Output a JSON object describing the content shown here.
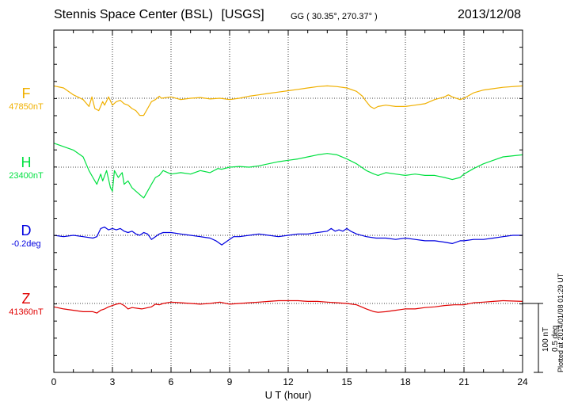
{
  "header": {
    "station": "Stennis Space Center (BSL)",
    "agency": "[USGS]",
    "coords": "GG ( 30.35°, 270.37° )",
    "date": "2013/12/08"
  },
  "plotted_note": "Plotted at 2014/01/08 01:29 UT",
  "scale": {
    "nt": "100 nT",
    "deg": "0.5 deg"
  },
  "chart_data": {
    "type": "line",
    "xlabel": "U T (hour)",
    "xlim": [
      0,
      24
    ],
    "xticks": [
      "0",
      "3",
      "6",
      "9",
      "12",
      "15",
      "18",
      "21",
      "24"
    ],
    "grid": true,
    "series": [
      {
        "name": "F",
        "baseline_label": "47850nT",
        "color": "#f0b000",
        "offset_scale": "nT",
        "points": [
          [
            0,
            18
          ],
          [
            0.5,
            15
          ],
          [
            1,
            5
          ],
          [
            1.5,
            -2
          ],
          [
            1.8,
            -12
          ],
          [
            1.95,
            2
          ],
          [
            2.1,
            -15
          ],
          [
            2.3,
            -18
          ],
          [
            2.5,
            -5
          ],
          [
            2.6,
            -10
          ],
          [
            2.8,
            2
          ],
          [
            3,
            -10
          ],
          [
            3.2,
            -5
          ],
          [
            3.4,
            -3
          ],
          [
            3.6,
            -8
          ],
          [
            3.8,
            -10
          ],
          [
            4,
            -15
          ],
          [
            4.2,
            -18
          ],
          [
            4.4,
            -25
          ],
          [
            4.6,
            -25
          ],
          [
            4.8,
            -15
          ],
          [
            5,
            -5
          ],
          [
            5.2,
            -2
          ],
          [
            5.4,
            3
          ],
          [
            5.5,
            0
          ],
          [
            6,
            2
          ],
          [
            6.5,
            -2
          ],
          [
            7,
            0
          ],
          [
            7.5,
            1
          ],
          [
            8,
            -1
          ],
          [
            8.5,
            0
          ],
          [
            9,
            -2
          ],
          [
            9.5,
            0
          ],
          [
            10,
            3
          ],
          [
            10.5,
            5
          ],
          [
            11,
            7
          ],
          [
            11.5,
            9
          ],
          [
            12,
            11
          ],
          [
            12.5,
            13
          ],
          [
            13,
            15
          ],
          [
            13.5,
            17
          ],
          [
            14,
            18
          ],
          [
            14.5,
            17
          ],
          [
            15,
            15
          ],
          [
            15.5,
            10
          ],
          [
            15.8,
            3
          ],
          [
            16,
            -5
          ],
          [
            16.2,
            -12
          ],
          [
            16.4,
            -15
          ],
          [
            16.6,
            -12
          ],
          [
            17,
            -10
          ],
          [
            17.5,
            -12
          ],
          [
            18,
            -12
          ],
          [
            18.5,
            -10
          ],
          [
            19,
            -8
          ],
          [
            19.5,
            -2
          ],
          [
            20,
            2
          ],
          [
            20.2,
            5
          ],
          [
            20.4,
            2
          ],
          [
            20.8,
            -2
          ],
          [
            21,
            0
          ],
          [
            21.5,
            8
          ],
          [
            22,
            12
          ],
          [
            22.5,
            14
          ],
          [
            23,
            16
          ],
          [
            24,
            18
          ]
        ]
      },
      {
        "name": "H",
        "baseline_label": "23400nT",
        "color": "#00e040",
        "offset_scale": "nT",
        "points": [
          [
            0,
            35
          ],
          [
            0.5,
            30
          ],
          [
            1,
            25
          ],
          [
            1.5,
            15
          ],
          [
            1.8,
            -5
          ],
          [
            2,
            -15
          ],
          [
            2.2,
            -25
          ],
          [
            2.4,
            -10
          ],
          [
            2.5,
            -20
          ],
          [
            2.7,
            -5
          ],
          [
            2.9,
            -30
          ],
          [
            3,
            -35
          ],
          [
            3.1,
            -5
          ],
          [
            3.3,
            -15
          ],
          [
            3.5,
            -8
          ],
          [
            3.6,
            -25
          ],
          [
            3.8,
            -20
          ],
          [
            4,
            -30
          ],
          [
            4.2,
            -35
          ],
          [
            4.4,
            -40
          ],
          [
            4.6,
            -45
          ],
          [
            4.8,
            -35
          ],
          [
            5,
            -25
          ],
          [
            5.2,
            -15
          ],
          [
            5.4,
            -12
          ],
          [
            5.6,
            -5
          ],
          [
            6,
            -10
          ],
          [
            6.5,
            -8
          ],
          [
            7,
            -10
          ],
          [
            7.5,
            -5
          ],
          [
            8,
            -8
          ],
          [
            8.4,
            -2
          ],
          [
            8.6,
            -3
          ],
          [
            9,
            0
          ],
          [
            9.5,
            1
          ],
          [
            10,
            0
          ],
          [
            10.5,
            2
          ],
          [
            11,
            5
          ],
          [
            11.5,
            8
          ],
          [
            12,
            10
          ],
          [
            12.5,
            12
          ],
          [
            13,
            15
          ],
          [
            13.5,
            18
          ],
          [
            14,
            20
          ],
          [
            14.5,
            18
          ],
          [
            15,
            12
          ],
          [
            15.5,
            5
          ],
          [
            16,
            -5
          ],
          [
            16.4,
            -10
          ],
          [
            16.6,
            -12
          ],
          [
            17,
            -8
          ],
          [
            17.5,
            -10
          ],
          [
            18,
            -12
          ],
          [
            18.5,
            -10
          ],
          [
            19,
            -12
          ],
          [
            19.5,
            -12
          ],
          [
            20,
            -15
          ],
          [
            20.4,
            -18
          ],
          [
            20.8,
            -15
          ],
          [
            21,
            -10
          ],
          [
            21.5,
            -2
          ],
          [
            22,
            5
          ],
          [
            22.5,
            10
          ],
          [
            23,
            15
          ],
          [
            24,
            18
          ]
        ]
      },
      {
        "name": "D",
        "baseline_label": "-0.2deg",
        "color": "#0000e0",
        "offset_scale": "deg",
        "points": [
          [
            0,
            0
          ],
          [
            0.5,
            -1
          ],
          [
            1,
            0
          ],
          [
            1.5,
            -1
          ],
          [
            2,
            -2
          ],
          [
            2.2,
            -1
          ],
          [
            2.4,
            5
          ],
          [
            2.6,
            6
          ],
          [
            2.8,
            4
          ],
          [
            3,
            5
          ],
          [
            3.2,
            4
          ],
          [
            3.4,
            5
          ],
          [
            3.6,
            3
          ],
          [
            3.8,
            2
          ],
          [
            4,
            3
          ],
          [
            4.2,
            1
          ],
          [
            4.4,
            0
          ],
          [
            4.6,
            2
          ],
          [
            4.8,
            1
          ],
          [
            5,
            -3
          ],
          [
            5.2,
            -1
          ],
          [
            5.4,
            1
          ],
          [
            5.6,
            2
          ],
          [
            6,
            2
          ],
          [
            6.5,
            1
          ],
          [
            7,
            0
          ],
          [
            7.5,
            -1
          ],
          [
            8,
            -2
          ],
          [
            8.3,
            -4
          ],
          [
            8.6,
            -7
          ],
          [
            8.9,
            -4
          ],
          [
            9.2,
            -1
          ],
          [
            9.5,
            -1
          ],
          [
            10,
            0
          ],
          [
            10.5,
            1
          ],
          [
            11,
            0
          ],
          [
            11.5,
            -1
          ],
          [
            12,
            0
          ],
          [
            12.5,
            1
          ],
          [
            13,
            1
          ],
          [
            13.5,
            2
          ],
          [
            14,
            3
          ],
          [
            14.2,
            5
          ],
          [
            14.4,
            3
          ],
          [
            14.6,
            4
          ],
          [
            14.8,
            3
          ],
          [
            15,
            5
          ],
          [
            15.2,
            3
          ],
          [
            15.5,
            1
          ],
          [
            16,
            -1
          ],
          [
            16.5,
            -2
          ],
          [
            17,
            -2
          ],
          [
            17.5,
            -3
          ],
          [
            18,
            -2
          ],
          [
            18.5,
            -3
          ],
          [
            19,
            -4
          ],
          [
            19.5,
            -4
          ],
          [
            20,
            -5
          ],
          [
            20.4,
            -6
          ],
          [
            20.8,
            -4
          ],
          [
            21,
            -4
          ],
          [
            21.5,
            -3
          ],
          [
            22,
            -3
          ],
          [
            22.5,
            -2
          ],
          [
            23,
            -1
          ],
          [
            23.5,
            0
          ],
          [
            24,
            0
          ]
        ]
      },
      {
        "name": "Z",
        "baseline_label": "41360nT",
        "color": "#e00000",
        "offset_scale": "nT",
        "points": [
          [
            0,
            -5
          ],
          [
            0.5,
            -8
          ],
          [
            1,
            -10
          ],
          [
            1.5,
            -12
          ],
          [
            2,
            -12
          ],
          [
            2.2,
            -14
          ],
          [
            2.4,
            -10
          ],
          [
            2.6,
            -8
          ],
          [
            2.8,
            -5
          ],
          [
            3,
            -3
          ],
          [
            3.2,
            -1
          ],
          [
            3.4,
            0
          ],
          [
            3.6,
            -3
          ],
          [
            3.8,
            -8
          ],
          [
            4,
            -6
          ],
          [
            4.5,
            -8
          ],
          [
            5,
            -5
          ],
          [
            5.2,
            -1
          ],
          [
            5.4,
            -2
          ],
          [
            5.6,
            0
          ],
          [
            6,
            2
          ],
          [
            6.5,
            1
          ],
          [
            7,
            0
          ],
          [
            7.5,
            -1
          ],
          [
            8,
            0
          ],
          [
            8.5,
            2
          ],
          [
            9,
            -1
          ],
          [
            9.5,
            0
          ],
          [
            10,
            1
          ],
          [
            10.5,
            2
          ],
          [
            11,
            3
          ],
          [
            11.5,
            4
          ],
          [
            12,
            4
          ],
          [
            12.5,
            4
          ],
          [
            13,
            3
          ],
          [
            13.5,
            3
          ],
          [
            14,
            2
          ],
          [
            14.5,
            1
          ],
          [
            15,
            0
          ],
          [
            15.5,
            -2
          ],
          [
            16,
            -8
          ],
          [
            16.4,
            -12
          ],
          [
            16.6,
            -13
          ],
          [
            17,
            -12
          ],
          [
            17.5,
            -10
          ],
          [
            18,
            -8
          ],
          [
            18.5,
            -8
          ],
          [
            19,
            -6
          ],
          [
            19.5,
            -5
          ],
          [
            20,
            -3
          ],
          [
            20.5,
            -2
          ],
          [
            21,
            -2
          ],
          [
            21.5,
            1
          ],
          [
            22,
            2
          ],
          [
            22.5,
            3
          ],
          [
            23,
            4
          ],
          [
            24,
            3
          ]
        ]
      }
    ]
  }
}
